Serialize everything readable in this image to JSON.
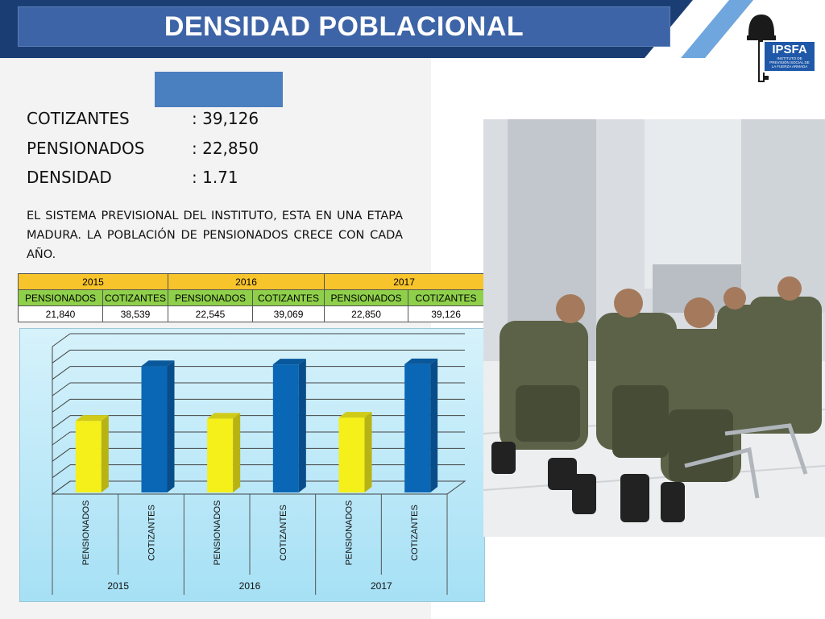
{
  "header": {
    "title": "DENSIDAD POBLACIONAL",
    "logo_text": "IPSFA",
    "logo_subtitle": "INSTITUTO DE PREVISIÓN SOCIAL DE LA FUERZA ARMADA"
  },
  "stats": [
    {
      "label": "COTIZANTES",
      "value": ": 39,126"
    },
    {
      "label": "PENSIONADOS",
      "value": ": 22,850"
    },
    {
      "label": "DENSIDAD",
      "value": ": 1.71"
    }
  ],
  "paragraph": "EL SISTEMA PREVISIONAL DEL INSTITUTO, ESTA EN UNA ETAPA MADURA. LA POBLACIÓN DE PENSIONADOS CRECE CON CADA AÑO.",
  "table": {
    "years": [
      "2015",
      "2016",
      "2017"
    ],
    "subheaders": [
      "PENSIONADOS",
      "COTIZANTES",
      "PENSIONADOS",
      "COTIZANTES",
      "PENSIONADOS",
      "COTIZANTES"
    ],
    "values": [
      "21,840",
      "38,539",
      "22,545",
      "39,069",
      "22,850",
      "39,126"
    ]
  },
  "chart_data": {
    "type": "bar",
    "groups": [
      "2015",
      "2016",
      "2017"
    ],
    "categories": [
      "PENSIONADOS",
      "COTIZANTES",
      "PENSIONADOS",
      "COTIZANTES",
      "PENSIONADOS",
      "COTIZANTES"
    ],
    "values": [
      21840,
      38539,
      22545,
      39069,
      22850,
      39126
    ],
    "colors": [
      "#f5ef1a",
      "#0a67b6",
      "#f5ef1a",
      "#0a67b6",
      "#f5ef1a",
      "#0a67b6"
    ],
    "ylim": [
      0,
      45000
    ],
    "grid": true,
    "style": "3d"
  },
  "colors": {
    "header_bg": "#1a3e74",
    "title_box": "#3d64a6",
    "pensionados": "#f5ef1a",
    "cotizantes": "#0a67b6"
  }
}
